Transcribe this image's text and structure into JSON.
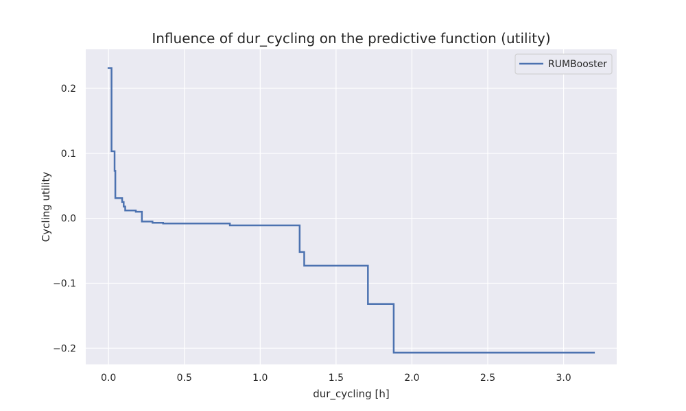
{
  "chart_data": {
    "type": "line",
    "title": "Influence of dur_cycling on the predictive function (utility)",
    "xlabel": "dur_cycling [h]",
    "ylabel": "Cycling utility",
    "xlim": [
      -0.15,
      3.35
    ],
    "ylim": [
      -0.225,
      0.26
    ],
    "x_ticks": [
      0.0,
      0.5,
      1.0,
      1.5,
      2.0,
      2.5,
      3.0
    ],
    "x_tick_labels": [
      "0.0",
      "0.5",
      "1.0",
      "1.5",
      "2.0",
      "2.5",
      "3.0"
    ],
    "y_ticks": [
      0.2,
      0.1,
      0.0,
      -0.1,
      -0.2
    ],
    "y_tick_labels": [
      "0.2",
      "0.1",
      "0.0",
      "−0.1",
      "−0.2"
    ],
    "grid": true,
    "legend_position": "top-right",
    "series": [
      {
        "name": "RUMBooster",
        "color": "#4c72b0",
        "step": true,
        "x": [
          0.0,
          0.02,
          0.04,
          0.045,
          0.09,
          0.1,
          0.11,
          0.18,
          0.22,
          0.29,
          0.36,
          0.8,
          1.03,
          1.26,
          1.29,
          1.71,
          1.88,
          3.2
        ],
        "y": [
          0.231,
          0.103,
          0.073,
          0.031,
          0.025,
          0.018,
          0.012,
          0.01,
          -0.005,
          -0.007,
          -0.008,
          -0.011,
          -0.011,
          -0.052,
          -0.073,
          -0.132,
          -0.207,
          -0.207
        ]
      }
    ]
  }
}
